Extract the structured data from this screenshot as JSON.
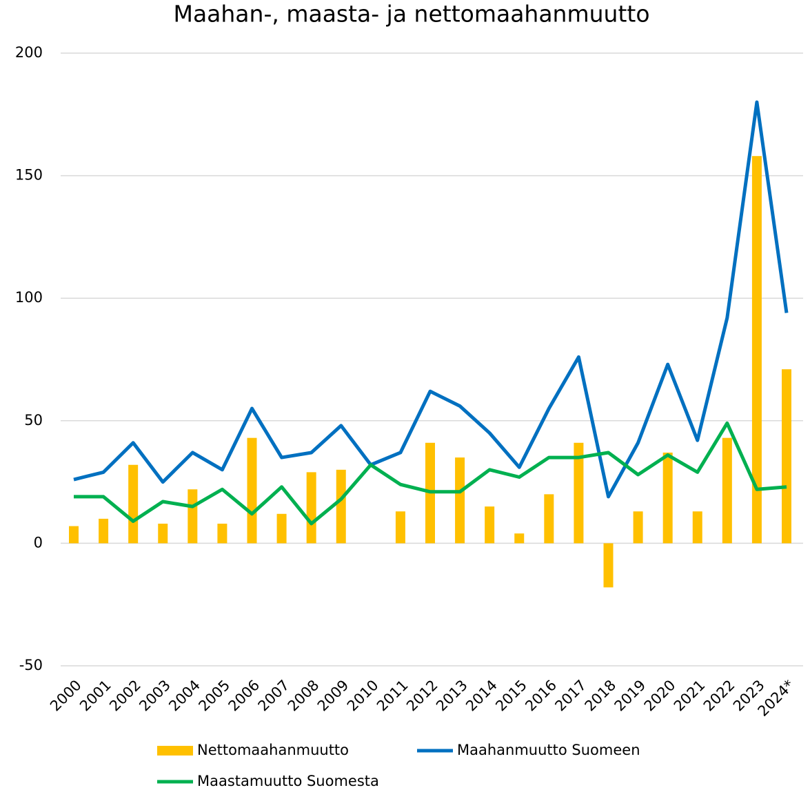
{
  "chart_data": {
    "type": "combo",
    "title": "Maahan-, maasta- ja nettomaahanmuutto",
    "categories": [
      "2000",
      "2001",
      "2002",
      "2003",
      "2004",
      "2005",
      "2006",
      "2007",
      "2008",
      "2009",
      "2010",
      "2011",
      "2012",
      "2013",
      "2014",
      "2015",
      "2016",
      "2017",
      "2018",
      "2019",
      "2020",
      "2021",
      "2022",
      "2023",
      "2024*"
    ],
    "series": [
      {
        "name": "Nettomaahanmuutto",
        "type": "bar",
        "color": "#ffc000",
        "values": [
          7,
          10,
          32,
          8,
          22,
          8,
          43,
          12,
          29,
          30,
          0,
          13,
          41,
          35,
          15,
          4,
          20,
          41,
          -18,
          13,
          37,
          13,
          43,
          158,
          71
        ]
      },
      {
        "name": "Maahanmuutto Suomeen",
        "type": "line",
        "color": "#0070c0",
        "values": [
          26,
          29,
          41,
          25,
          37,
          30,
          55,
          35,
          37,
          48,
          32,
          37,
          62,
          56,
          45,
          31,
          55,
          76,
          19,
          41,
          73,
          42,
          92,
          180,
          94
        ]
      },
      {
        "name": "Maastamuutto Suomesta",
        "type": "line",
        "color": "#00b050",
        "values": [
          19,
          19,
          9,
          17,
          15,
          22,
          12,
          23,
          8,
          18,
          32,
          24,
          21,
          21,
          30,
          27,
          35,
          35,
          37,
          28,
          36,
          29,
          49,
          22,
          23
        ]
      }
    ],
    "ylim": [
      -50,
      200
    ],
    "yticks": [
      -50,
      0,
      50,
      100,
      150,
      200
    ],
    "grid": true
  }
}
